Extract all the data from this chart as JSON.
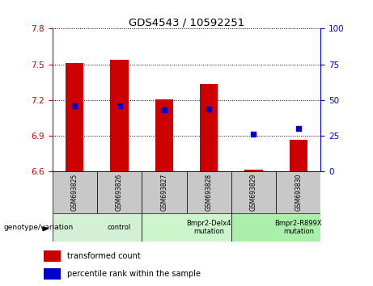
{
  "title": "GDS4543 / 10592251",
  "samples": [
    "GSM693825",
    "GSM693826",
    "GSM693827",
    "GSM693828",
    "GSM693829",
    "GSM693830"
  ],
  "red_values": [
    7.513,
    7.535,
    7.205,
    7.335,
    6.615,
    6.865
  ],
  "blue_values": [
    46,
    46,
    43,
    44,
    26,
    30
  ],
  "ylim_left": [
    6.6,
    7.8
  ],
  "ylim_right": [
    0,
    100
  ],
  "yticks_left": [
    6.6,
    6.9,
    7.2,
    7.5,
    7.8
  ],
  "yticks_right": [
    0,
    25,
    50,
    75,
    100
  ],
  "bar_color": "#cc0000",
  "dot_color": "#0000cc",
  "bar_width": 0.4,
  "baseline": 6.6,
  "tick_label_color_left": "#cc0000",
  "tick_label_color_right": "#0000cc",
  "legend_red_label": "transformed count",
  "legend_blue_label": "percentile rank within the sample",
  "group_label_text": "genotype/variation",
  "group_bg_color": "#c8c8c8",
  "group_defs": [
    [
      0,
      2,
      "control",
      "#d4f0d4"
    ],
    [
      2,
      4,
      "Bmpr2-Delx4\nmutation",
      "#ccf5cc"
    ],
    [
      4,
      6,
      "Bmpr2-R899X\nmutation",
      "#aaf0aa"
    ]
  ]
}
